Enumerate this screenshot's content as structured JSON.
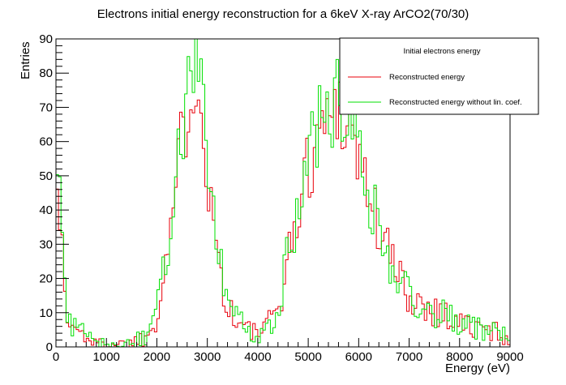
{
  "chart_data": {
    "type": "line",
    "title": "Electrons initial energy reconstruction for a 6keV X-ray ArCO2(70/30)",
    "xlabel": "Energy (eV)",
    "ylabel": "Entries",
    "xlim": [
      0,
      9000
    ],
    "ylim": [
      0,
      90
    ],
    "x_ticks": [
      "0",
      "1000",
      "2000",
      "3000",
      "4000",
      "5000",
      "6000",
      "7000",
      "8000",
      "9000"
    ],
    "y_ticks": [
      "0",
      "10",
      "20",
      "30",
      "40",
      "50",
      "60",
      "70",
      "80",
      "90"
    ],
    "grid": false,
    "histogram_style": "step",
    "bin_width": 50,
    "legend": {
      "placement": "top-right",
      "header": "Initial electrons energy",
      "entries": [
        {
          "label": "Reconstructed energy",
          "color": "#e8000b"
        },
        {
          "label": "Reconstructed energy without lin. coef.",
          "color": "#00e000"
        }
      ]
    },
    "series": [
      {
        "name": "Reconstructed energy",
        "color": "#e8000b",
        "x": [
          0,
          200,
          400,
          600,
          800,
          1000,
          1200,
          1400,
          1600,
          1800,
          2000,
          2200,
          2400,
          2600,
          2700,
          2800,
          2900,
          3000,
          3200,
          3400,
          3600,
          3800,
          4000,
          4200,
          4400,
          4600,
          4800,
          5000,
          5200,
          5400,
          5600,
          5800,
          6000,
          6200,
          6400,
          6600,
          6800,
          7000,
          7200,
          7400,
          7600,
          7800,
          8000,
          8200,
          8400,
          8600,
          8800,
          9000
        ],
        "y": [
          60,
          8,
          5,
          3,
          1,
          1,
          1,
          1,
          2,
          3,
          10,
          28,
          50,
          70,
          78,
          82,
          70,
          50,
          28,
          12,
          7,
          5,
          4,
          6,
          12,
          25,
          40,
          53,
          62,
          68,
          72,
          66,
          56,
          45,
          35,
          27,
          20,
          15,
          13,
          12,
          10,
          9,
          7,
          6,
          5,
          5,
          4,
          3
        ]
      },
      {
        "name": "Reconstructed energy without lin. coef.",
        "color": "#00e000",
        "x": [
          0,
          200,
          400,
          600,
          800,
          1000,
          1200,
          1400,
          1600,
          1800,
          2000,
          2200,
          2400,
          2600,
          2700,
          2800,
          2900,
          3000,
          3200,
          3400,
          3600,
          3800,
          4000,
          4200,
          4400,
          4600,
          4800,
          5000,
          5200,
          5400,
          5600,
          5800,
          6000,
          6200,
          6400,
          6600,
          6800,
          7000,
          7200,
          7400,
          7600,
          7800,
          8000,
          8200,
          8400,
          8600,
          8800,
          9000
        ],
        "y": [
          62,
          9,
          5,
          3,
          1,
          1,
          1,
          1,
          2,
          3,
          10,
          29,
          51,
          72,
          80,
          86,
          72,
          51,
          28,
          12,
          7,
          5,
          4,
          6,
          12,
          26,
          41,
          54,
          63,
          69,
          73,
          67,
          57,
          46,
          35,
          27,
          20,
          15,
          13,
          12,
          10,
          9,
          7,
          6,
          5,
          5,
          4,
          3
        ]
      }
    ]
  }
}
